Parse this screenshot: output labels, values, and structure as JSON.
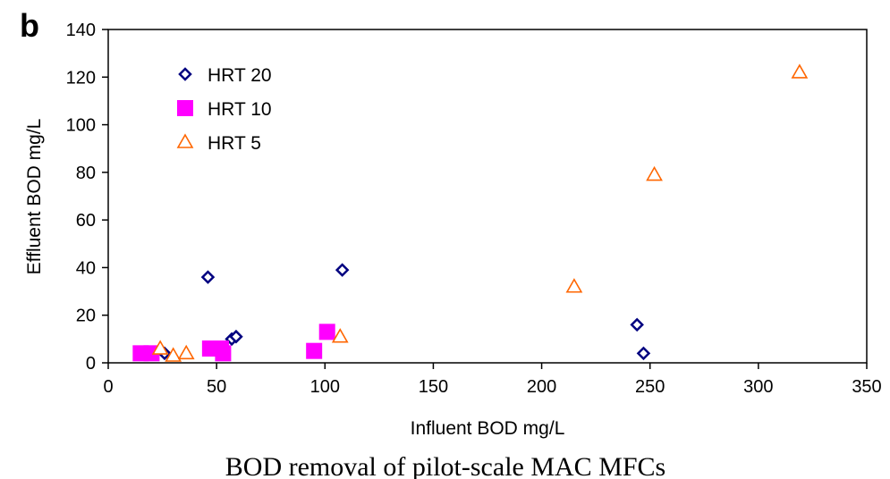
{
  "panel_label": "b",
  "caption": "BOD removal of pilot-scale MAC MFCs",
  "chart_data": {
    "type": "scatter",
    "title": "",
    "xlabel": "Influent BOD mg/L",
    "ylabel": "Effluent BOD mg/L",
    "xlim": [
      0,
      350
    ],
    "ylim": [
      0,
      140
    ],
    "xticks": [
      0,
      50,
      100,
      150,
      200,
      250,
      300,
      350
    ],
    "yticks": [
      0,
      20,
      40,
      60,
      80,
      100,
      120,
      140
    ],
    "grid": false,
    "legend": "top-left",
    "series": [
      {
        "name": "HRT 20",
        "marker": "diamond-open",
        "color": "#000080",
        "points": [
          {
            "x": 26,
            "y": 4
          },
          {
            "x": 46,
            "y": 36
          },
          {
            "x": 57,
            "y": 10
          },
          {
            "x": 59,
            "y": 11
          },
          {
            "x": 108,
            "y": 39
          },
          {
            "x": 244,
            "y": 16
          },
          {
            "x": 247,
            "y": 4
          }
        ]
      },
      {
        "name": "HRT 10",
        "marker": "square-filled",
        "color": "#ff00ff",
        "points": [
          {
            "x": 15,
            "y": 4
          },
          {
            "x": 20,
            "y": 4
          },
          {
            "x": 47,
            "y": 6
          },
          {
            "x": 52,
            "y": 6
          },
          {
            "x": 53,
            "y": 4
          },
          {
            "x": 95,
            "y": 5
          },
          {
            "x": 101,
            "y": 13
          }
        ]
      },
      {
        "name": "HRT 5",
        "marker": "triangle-open",
        "color": "#ff6600",
        "points": [
          {
            "x": 24,
            "y": 6
          },
          {
            "x": 30,
            "y": 3
          },
          {
            "x": 36,
            "y": 4
          },
          {
            "x": 107,
            "y": 11
          },
          {
            "x": 215,
            "y": 32
          },
          {
            "x": 252,
            "y": 79
          },
          {
            "x": 319,
            "y": 122
          }
        ]
      }
    ]
  }
}
